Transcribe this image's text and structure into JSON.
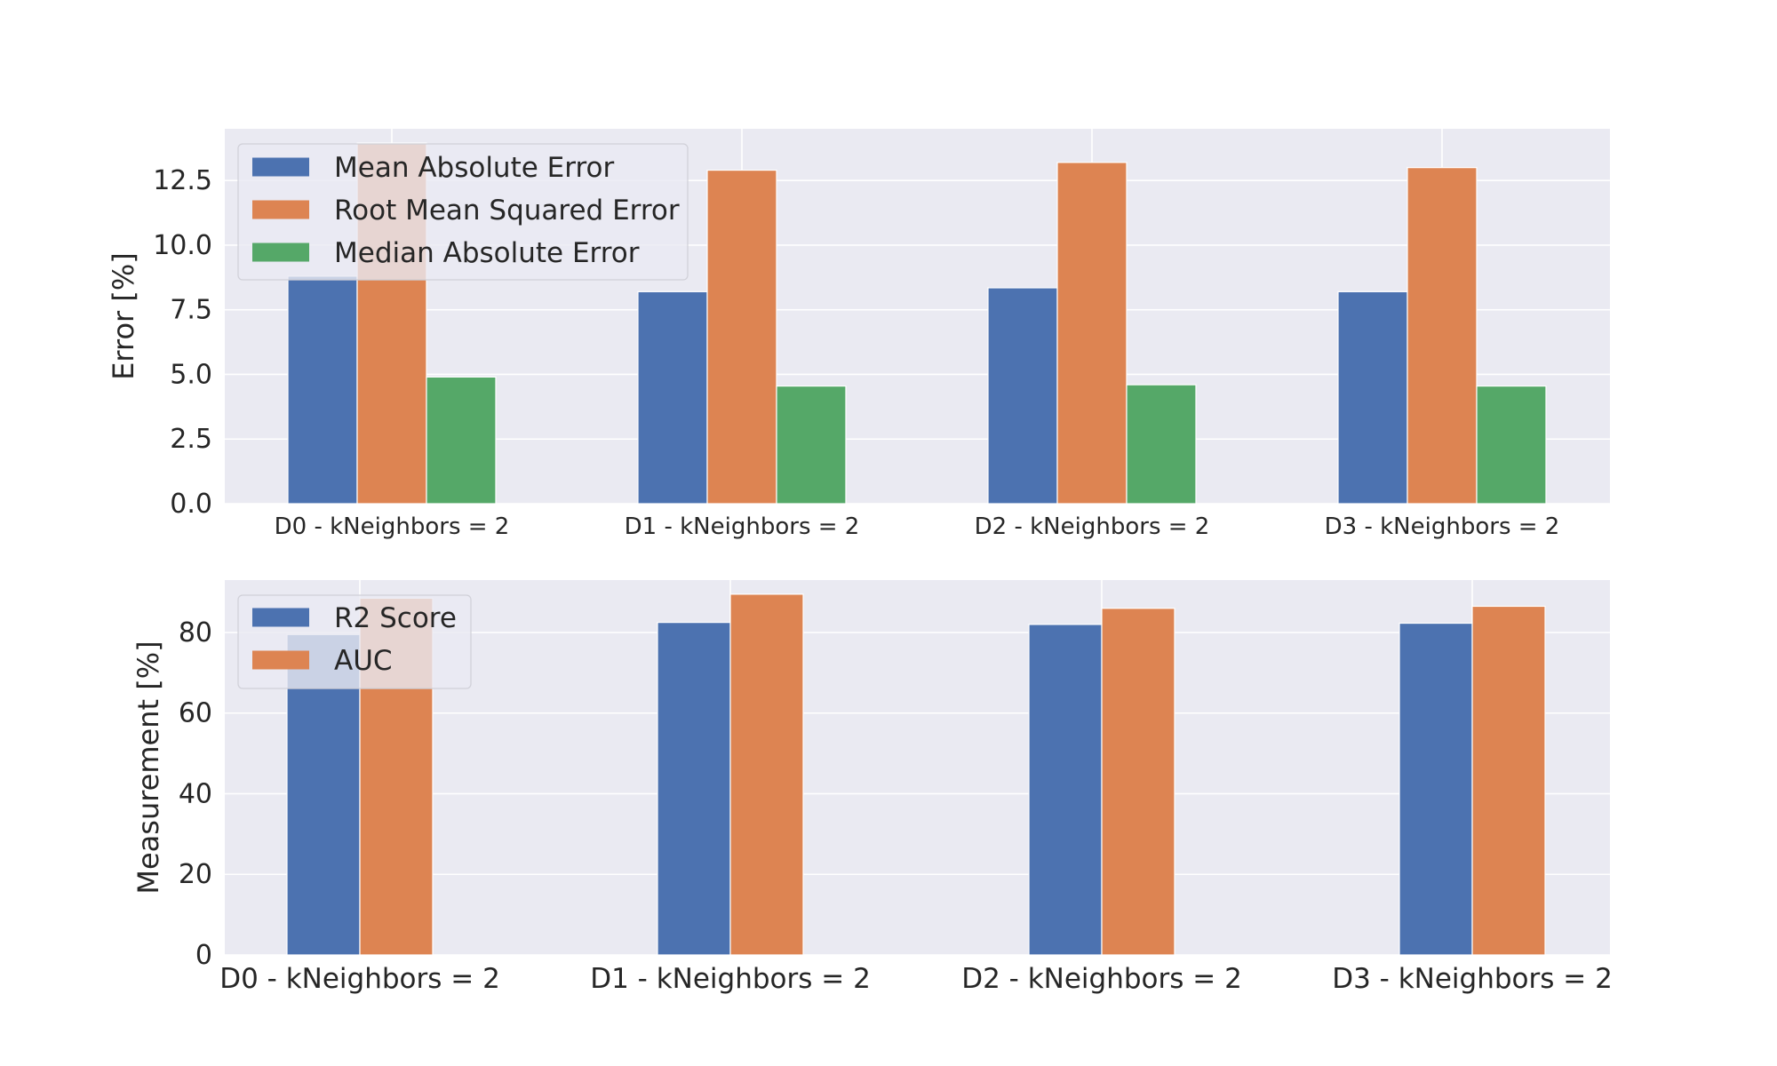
{
  "chart_data": [
    {
      "type": "bar",
      "categories": [
        "D0 - kNeighbors = 2",
        "D1 - kNeighbors = 2",
        "D2 - kNeighbors = 2",
        "D3 - kNeighbors = 2"
      ],
      "series": [
        {
          "name": "Mean Absolute Error",
          "color": "#4c72b0",
          "values": [
            8.8,
            8.2,
            8.35,
            8.2
          ]
        },
        {
          "name": "Root Mean Squared Error",
          "color": "#dd8452",
          "values": [
            13.95,
            12.9,
            13.2,
            13.0
          ]
        },
        {
          "name": "Median Absolute Error",
          "color": "#55a868",
          "values": [
            4.9,
            4.55,
            4.6,
            4.55
          ]
        }
      ],
      "ylabel": "Error [%]",
      "ylim": [
        0,
        14.5
      ],
      "yticks": [
        "0.0",
        "2.5",
        "5.0",
        "7.5",
        "10.0",
        "12.5"
      ],
      "legend": "upper-left",
      "grid": true
    },
    {
      "type": "bar",
      "categories": [
        "D0 - kNeighbors = 2",
        "D1 - kNeighbors = 2",
        "D2 - kNeighbors = 2",
        "D3 - kNeighbors = 2"
      ],
      "series": [
        {
          "name": "R2 Score",
          "color": "#4c72b0",
          "values": [
            79.5,
            82.5,
            82.0,
            82.3
          ]
        },
        {
          "name": "AUC",
          "color": "#dd8452",
          "values": [
            88.5,
            89.5,
            86.0,
            86.5
          ]
        }
      ],
      "ylabel": "Measurement [%]",
      "ylim": [
        0,
        93
      ],
      "yticks": [
        "0",
        "20",
        "40",
        "60",
        "80"
      ],
      "legend": "upper-left",
      "grid": true
    }
  ]
}
